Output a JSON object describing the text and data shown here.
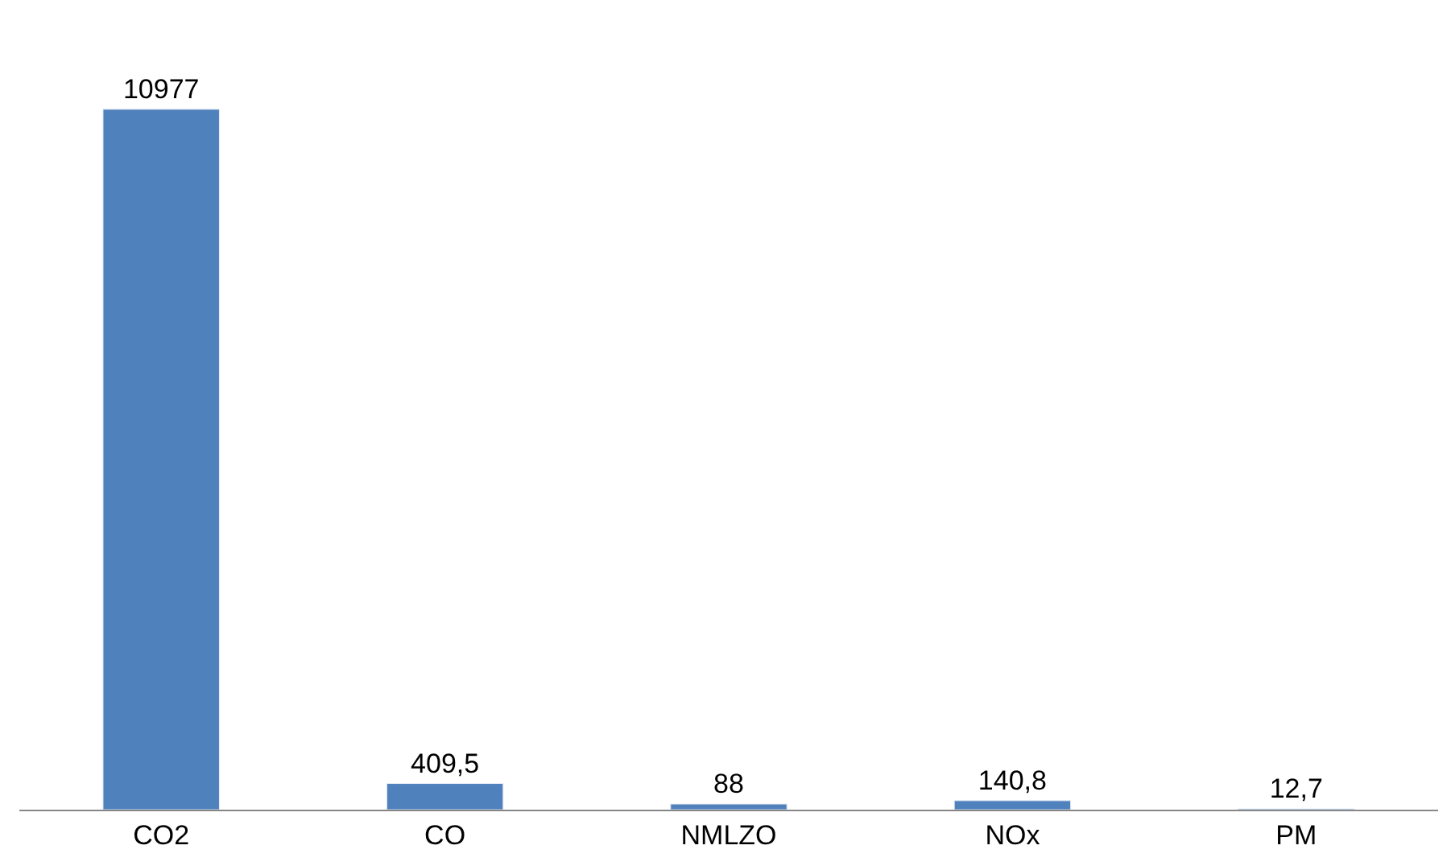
{
  "chart_data": {
    "type": "bar",
    "categories": [
      "CO2",
      "CO",
      "NMLZO",
      "NOx",
      "PM"
    ],
    "values": [
      10977,
      409.5,
      88,
      140.8,
      12.7
    ],
    "value_labels": [
      "10977",
      "409,5",
      "88",
      "140,8",
      "12,7"
    ],
    "color": "#4f81bd"
  }
}
